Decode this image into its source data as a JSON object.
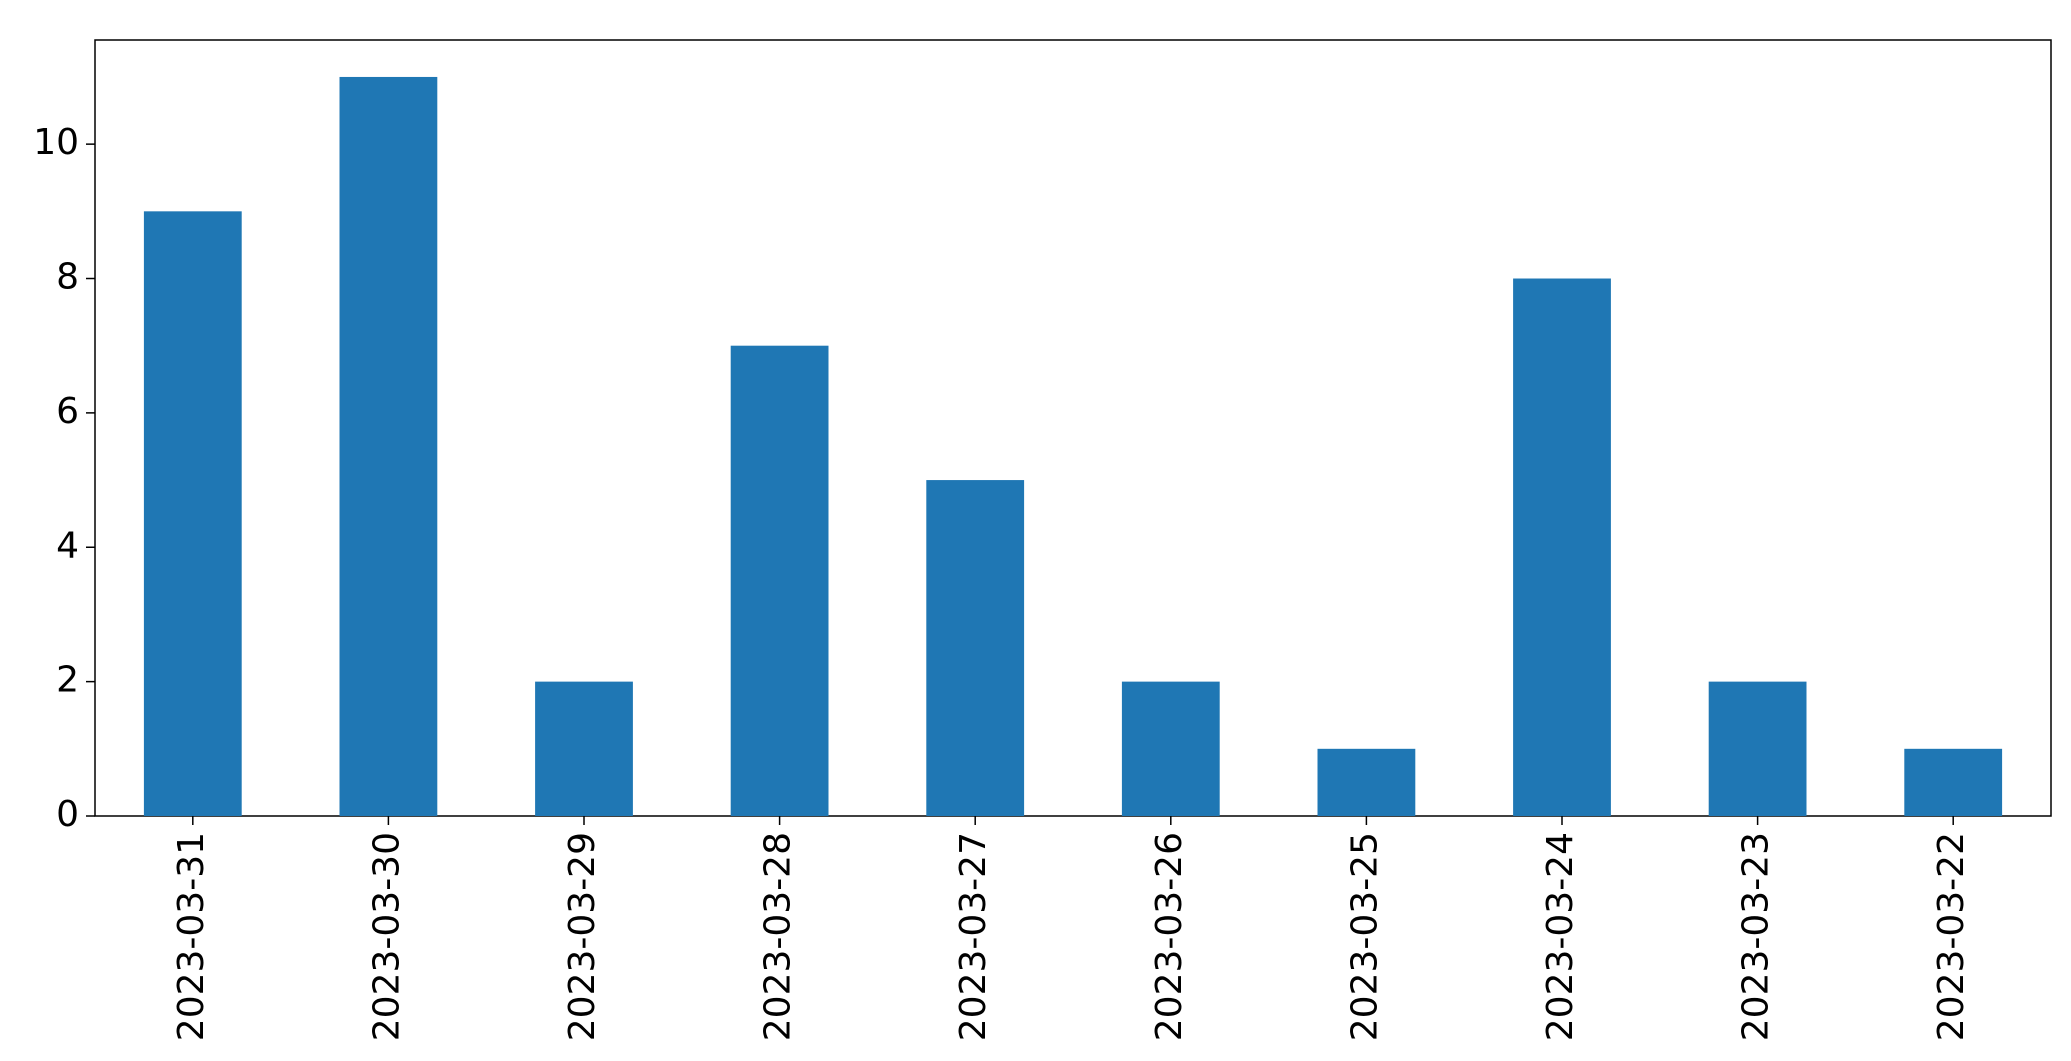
{
  "chart_data": {
    "type": "bar",
    "categories": [
      "2023-03-31",
      "2023-03-30",
      "2023-03-29",
      "2023-03-28",
      "2023-03-27",
      "2023-03-26",
      "2023-03-25",
      "2023-03-24",
      "2023-03-23",
      "2023-03-22"
    ],
    "values": [
      9,
      11,
      2,
      7,
      5,
      2,
      1,
      8,
      2,
      1
    ],
    "color": "#1f77b4",
    "ylim": [
      0,
      11.55
    ],
    "yticks": [
      0,
      2,
      4,
      6,
      8,
      10
    ],
    "grid": false
  }
}
